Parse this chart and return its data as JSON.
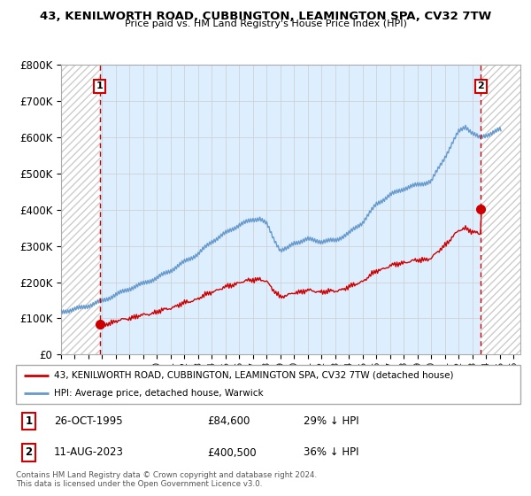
{
  "title": "43, KENILWORTH ROAD, CUBBINGTON, LEAMINGTON SPA, CV32 7TW",
  "subtitle": "Price paid vs. HM Land Registry's House Price Index (HPI)",
  "legend_line1": "43, KENILWORTH ROAD, CUBBINGTON, LEAMINGTON SPA, CV32 7TW (detached house)",
  "legend_line2": "HPI: Average price, detached house, Warwick",
  "transaction1_date": "26-OCT-1995",
  "transaction1_price": 84600,
  "transaction1_x": 1995.83,
  "transaction2_date": "11-AUG-2023",
  "transaction2_price": 400500,
  "transaction2_x": 2023.62,
  "transaction1_pct": "29% ↓ HPI",
  "transaction2_pct": "36% ↓ HPI",
  "price_line_color": "#cc0000",
  "hpi_line_color": "#6699cc",
  "hpi_fill_color": "#ddeeff",
  "marker_color": "#cc0000",
  "dashed_color": "#cc0000",
  "grid_color": "#cccccc",
  "hatch_color": "#cccccc",
  "copyright": "Contains HM Land Registry data © Crown copyright and database right 2024.\nThis data is licensed under the Open Government Licence v3.0.",
  "ylim": [
    0,
    800000
  ],
  "yticks": [
    0,
    100000,
    200000,
    300000,
    400000,
    500000,
    600000,
    700000,
    800000
  ],
  "xlim_start": 1993.0,
  "xlim_end": 2026.5,
  "hatch_left_end": 1995.83,
  "hatch_right_start": 2023.62
}
